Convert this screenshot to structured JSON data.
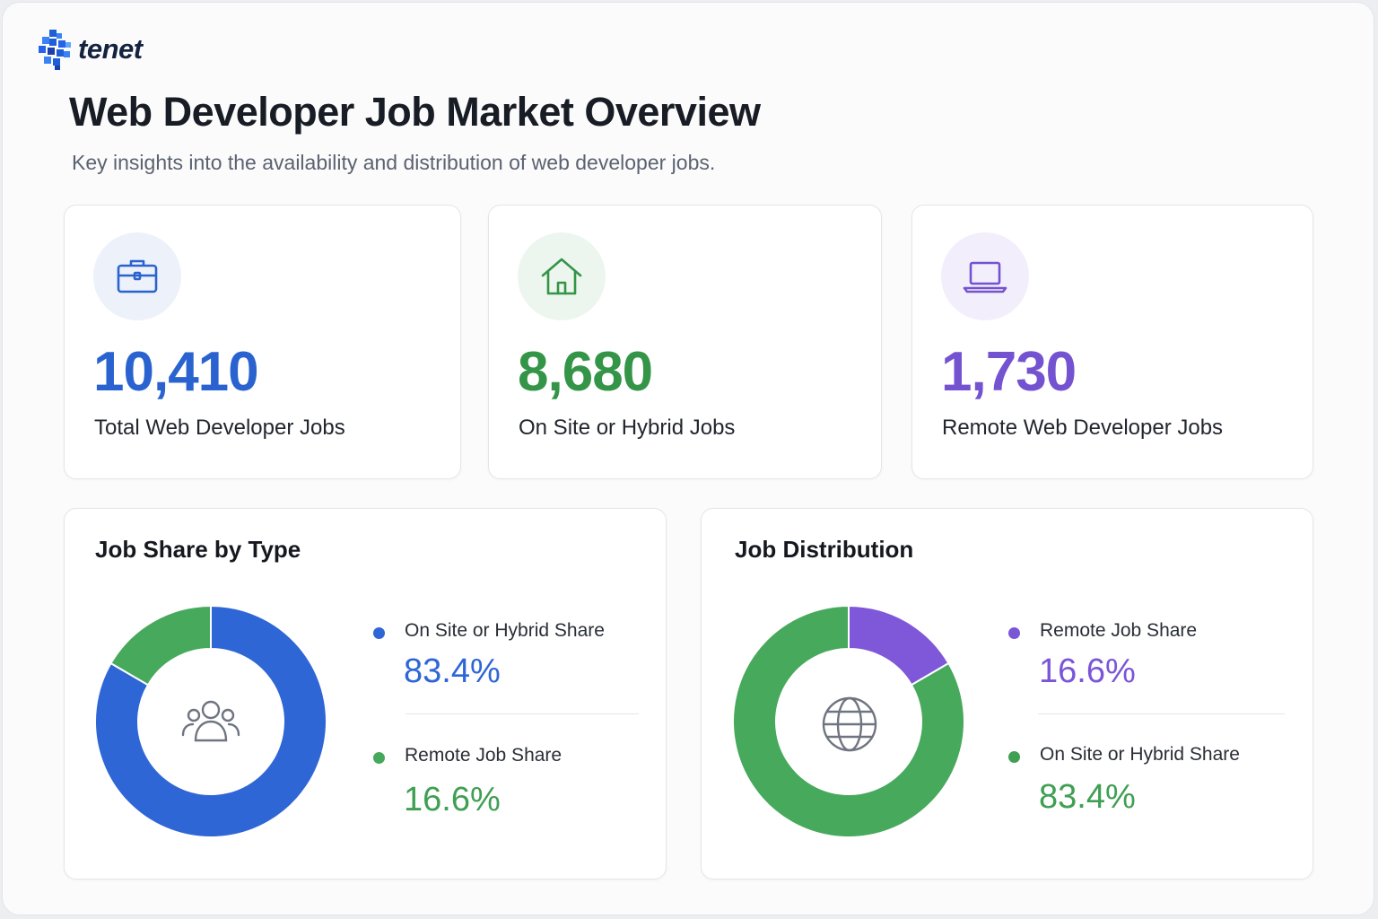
{
  "brand": {
    "name": "tenet",
    "icon": "tenet-logo-icon"
  },
  "header": {
    "title": "Web Developer Job Market Overview",
    "subtitle": "Key insights into the availability and distribution of web developer jobs."
  },
  "colors": {
    "blue": "#2f6fd6",
    "green": "#3f9f52",
    "purple": "#7c5bd6",
    "pie_blue": "#2f66d6",
    "pie_green": "#47a95c",
    "pie_purple": "#7f57d9"
  },
  "stats": [
    {
      "value": "10,410",
      "label": "Total Web Developer Jobs",
      "icon": "briefcase-icon",
      "color": "#2a63cf",
      "bg": "#eef2fb"
    },
    {
      "value": "8,680",
      "label": "On Site or Hybrid Jobs",
      "icon": "house-icon",
      "color": "#349447",
      "bg": "#edf7ef"
    },
    {
      "value": "1,730",
      "label": "Remote Web Developer Jobs",
      "icon": "laptop-icon",
      "color": "#7453d0",
      "bg": "#f3effb"
    }
  ],
  "panels": [
    {
      "title": "Job Share by Type",
      "center_icon": "users-icon",
      "legend": [
        {
          "label": "On Site or Hybrid Share",
          "value": "83.4%",
          "color": "#2f66d6"
        },
        {
          "label": "Remote Job Share",
          "value": "16.6%",
          "color": "#45a85a"
        }
      ]
    },
    {
      "title": "Job Distribution",
      "center_icon": "globe-icon",
      "legend": [
        {
          "label": "Remote Job Share",
          "value": "16.6%",
          "color": "#7b55d8"
        },
        {
          "label": "On Site or Hybrid Share",
          "value": "83.4%",
          "color": "#3f9f52"
        }
      ]
    }
  ],
  "chart_data": [
    {
      "type": "pie",
      "title": "Job Share by Type",
      "categories": [
        "On Site or Hybrid Share",
        "Remote Job Share"
      ],
      "values": [
        83.4,
        16.6
      ],
      "colors": [
        "#2f66d6",
        "#47a95c"
      ]
    },
    {
      "type": "pie",
      "title": "Job Distribution",
      "categories": [
        "Remote Job Share",
        "On Site or Hybrid Share"
      ],
      "values": [
        16.6,
        83.4
      ],
      "colors": [
        "#7f57d9",
        "#47a95c"
      ]
    }
  ]
}
